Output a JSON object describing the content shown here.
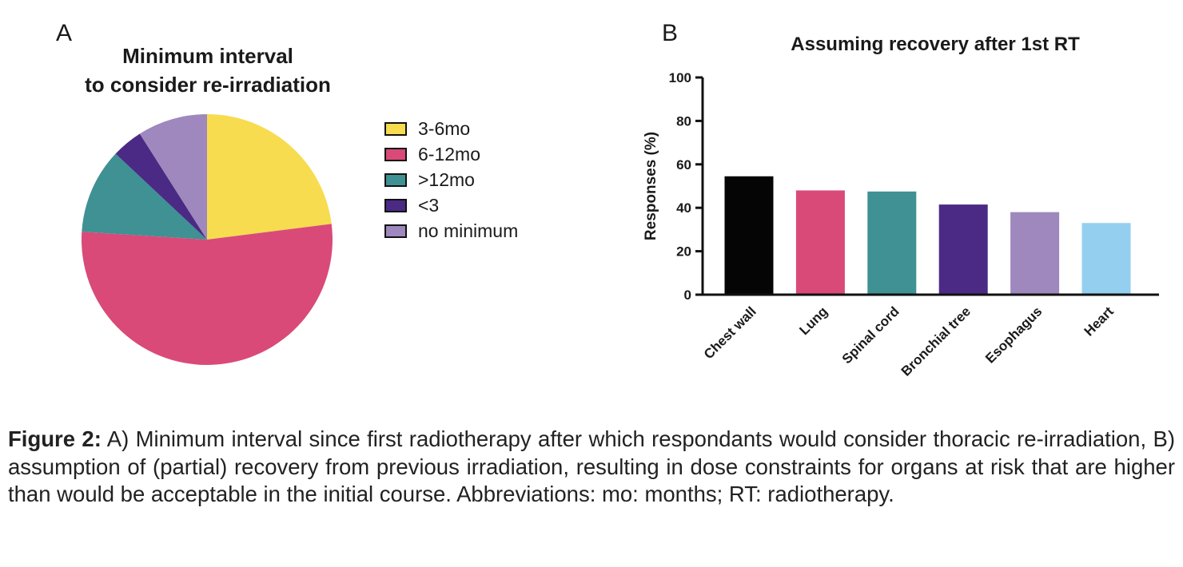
{
  "panels": {
    "a_letter": "A",
    "b_letter": "B"
  },
  "chart_data": [
    {
      "type": "pie",
      "title_line1": "Minimum interval",
      "title_line2": "to consider re-irradiation",
      "slices": [
        {
          "label": "3-6mo",
          "value": 23,
          "color": "#f7dc4f"
        },
        {
          "label": "6-12mo",
          "value": 53,
          "color": "#d94a78"
        },
        {
          "label": ">12mo",
          "value": 11,
          "color": "#3f9193"
        },
        {
          "label": "<3",
          "value": 4,
          "color": "#4b2a85"
        },
        {
          "label": "no minimum",
          "value": 9,
          "color": "#9e88bd"
        }
      ],
      "legend_placement": "right"
    },
    {
      "type": "bar",
      "title": "Assuming recovery after 1st RT",
      "ylabel": "Responses (%)",
      "ylim": [
        0,
        100
      ],
      "yticks": [
        0,
        20,
        40,
        60,
        80,
        100
      ],
      "categories": [
        "Chest wall",
        "Lung",
        "Spinal cord",
        "Bronchial tree",
        "Esophagus",
        "Heart"
      ],
      "values": [
        54.5,
        48,
        47.5,
        41.5,
        38,
        33
      ],
      "colors": [
        "#050505",
        "#d94a78",
        "#3f9193",
        "#4b2a85",
        "#9e88bd",
        "#94cfef"
      ]
    }
  ],
  "caption": {
    "label": "Figure 2:",
    "text": " A) Minimum interval since first radiotherapy after which respondants would consider thoracic re-irradiation, B) assumption of (partial) recovery from previous irradiation, resulting in dose constraints for organs at risk that are higher than would be acceptable in the initial course. Abbreviations: mo: months; RT: radiotherapy."
  }
}
